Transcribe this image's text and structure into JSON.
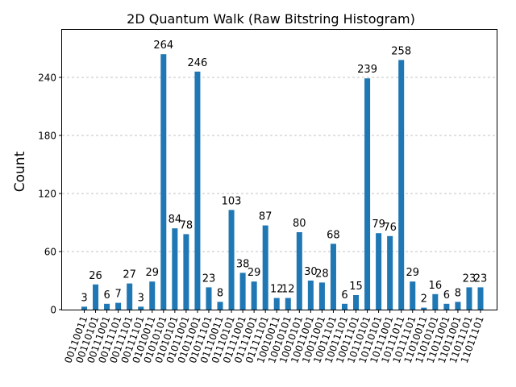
{
  "chart_data": {
    "type": "bar",
    "title": "2D Quantum Walk (Raw Bitstring Histogram)",
    "xlabel": "",
    "ylabel": "Count",
    "ylim": [
      0,
      290
    ],
    "yticks": [
      0,
      60,
      120,
      180,
      240
    ],
    "grid": "y-dashed",
    "bar_color": "#1f77b4",
    "categories": [
      "00110011",
      "00110101",
      "00111001",
      "00111101",
      "00111101",
      "00111101",
      "01010011",
      "01010101",
      "01010101",
      "01011001",
      "01011001",
      "01011101",
      "01110011",
      "01110101",
      "01111001",
      "01111001",
      "01111101",
      "10010011",
      "10010101",
      "10010101",
      "10011001",
      "10011001",
      "10011101",
      "10011101",
      "10011101",
      "10110101",
      "10110101",
      "10111001",
      "10111011",
      "10111101",
      "11010011",
      "11010101",
      "11011001",
      "11011001",
      "11011101",
      "11011101"
    ],
    "values": [
      3,
      26,
      6,
      7,
      27,
      3,
      29,
      264,
      84,
      78,
      246,
      23,
      8,
      103,
      38,
      29,
      87,
      12,
      12,
      80,
      30,
      28,
      68,
      6,
      15,
      239,
      79,
      76,
      258,
      29,
      2,
      16,
      6,
      8,
      23,
      23
    ]
  }
}
